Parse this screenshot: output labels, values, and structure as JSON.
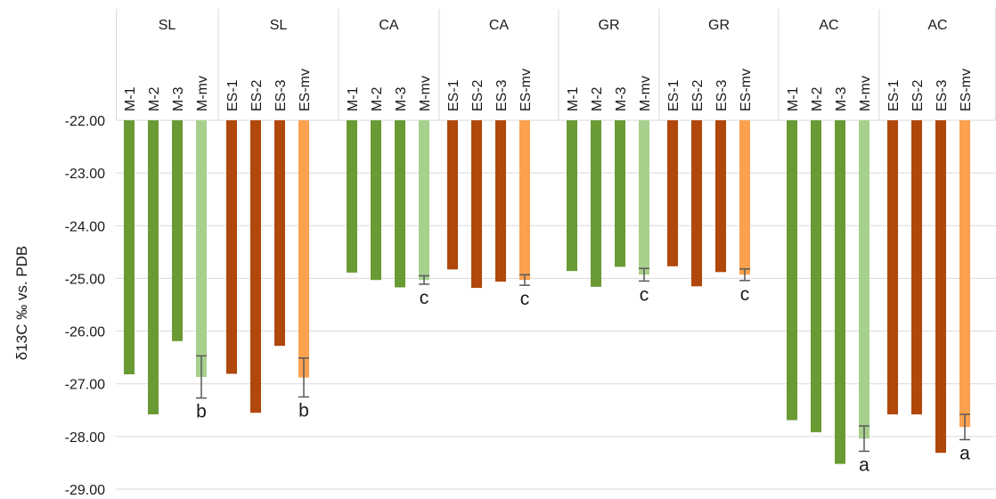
{
  "chart_data": {
    "type": "bar",
    "ylabel": "δ13C ‰ vs. PDB",
    "ylim": [
      -29,
      -22
    ],
    "yticks": [
      "-22.00",
      "-23.00",
      "-24.00",
      "-25.00",
      "-26.00",
      "-27.00",
      "-28.00",
      "-29.00"
    ],
    "grid": true,
    "bar_baseline": -22,
    "colors": {
      "M": "#6a9a34",
      "M-mv": "#a8d08d",
      "ES": "#b0470b",
      "ES-mv": "#fba14f",
      "grid": "#d9d9d9",
      "error_bar": "#595959"
    },
    "groups": [
      {
        "label": "SL",
        "categories": [
          "M-1",
          "M-2",
          "M-3",
          "M-mv"
        ],
        "values": [
          -26.82,
          -27.58,
          -26.19,
          -26.87
        ],
        "error": [
          null,
          null,
          null,
          0.4
        ],
        "letters": [
          null,
          null,
          null,
          "b"
        ]
      },
      {
        "label": "SL",
        "categories": [
          "ES-1",
          "ES-2",
          "ES-3",
          "ES-mv"
        ],
        "values": [
          -26.81,
          -27.55,
          -26.28,
          -26.88
        ],
        "error": [
          null,
          null,
          null,
          0.37
        ],
        "letters": [
          null,
          null,
          null,
          "b"
        ]
      },
      {
        "label": "CA",
        "categories": [
          "M-1",
          "M-2",
          "M-3",
          "M-mv"
        ],
        "values": [
          -24.89,
          -25.03,
          -25.17,
          -25.03
        ],
        "error": [
          null,
          null,
          null,
          0.08
        ],
        "letters": [
          null,
          null,
          null,
          "c"
        ]
      },
      {
        "label": "CA",
        "categories": [
          "ES-1",
          "ES-2",
          "ES-3",
          "ES-mv"
        ],
        "values": [
          -24.83,
          -25.18,
          -25.06,
          -25.03
        ],
        "error": [
          null,
          null,
          null,
          0.1
        ],
        "letters": [
          null,
          null,
          null,
          "c"
        ]
      },
      {
        "label": "GR",
        "categories": [
          "M-1",
          "M-2",
          "M-3",
          "M-mv"
        ],
        "values": [
          -24.86,
          -25.16,
          -24.78,
          -24.93
        ],
        "error": [
          null,
          null,
          null,
          0.12
        ],
        "letters": [
          null,
          null,
          null,
          "c"
        ]
      },
      {
        "label": "GR",
        "categories": [
          "ES-1",
          "ES-2",
          "ES-3",
          "ES-mv"
        ],
        "values": [
          -24.77,
          -25.15,
          -24.88,
          -24.93
        ],
        "error": [
          null,
          null,
          null,
          0.11
        ],
        "letters": [
          null,
          null,
          null,
          "c"
        ]
      },
      {
        "label": "AC",
        "categories": [
          "M-1",
          "M-2",
          "M-3",
          "M-mv"
        ],
        "values": [
          -27.69,
          -27.92,
          -28.52,
          -28.04
        ],
        "error": [
          null,
          null,
          null,
          0.24
        ],
        "letters": [
          null,
          null,
          null,
          "a"
        ]
      },
      {
        "label": "AC",
        "categories": [
          "ES-1",
          "ES-2",
          "ES-3",
          "ES-mv"
        ],
        "values": [
          -27.58,
          -27.58,
          -28.31,
          -27.82
        ],
        "error": [
          null,
          null,
          null,
          0.24
        ],
        "letters": [
          null,
          null,
          null,
          "a"
        ]
      }
    ]
  }
}
